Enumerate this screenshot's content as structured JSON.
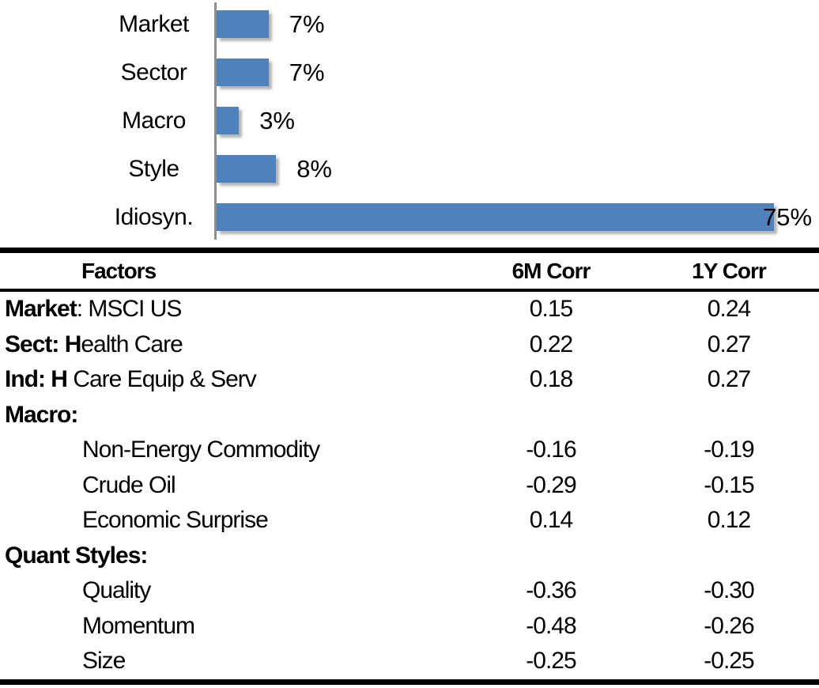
{
  "chart_data": [
    {
      "type": "bar",
      "orientation": "horizontal",
      "title": "",
      "xlabel": "",
      "ylabel": "",
      "categories": [
        "Market",
        "Sector",
        "Macro",
        "Style",
        "Idiosyn."
      ],
      "values": [
        7,
        7,
        3,
        8,
        75
      ],
      "data_labels": [
        "7%",
        "7%",
        "3%",
        "8%",
        "75%"
      ],
      "unit": "%",
      "xlim": [
        0,
        80
      ],
      "grid": false,
      "legend": false,
      "bar_color": "#4F81BD",
      "axis_color": "#8F8F8F"
    },
    {
      "type": "table",
      "columns": [
        "Factors",
        "6M Corr",
        "1Y Corr"
      ],
      "rows": [
        {
          "factor_bold": "Market",
          "factor_rest": ": MSCI US",
          "indent": false,
          "c6m": "0.15",
          "c1y": "0.24"
        },
        {
          "factor_bold": "Sect: H",
          "factor_rest": "ealth Care",
          "indent": false,
          "c6m": "0.22",
          "c1y": "0.27"
        },
        {
          "factor_bold": "Ind: H",
          "factor_rest": " Care Equip & Serv",
          "indent": false,
          "c6m": "0.18",
          "c1y": "0.27"
        },
        {
          "factor_bold": "Macro:",
          "factor_rest": "",
          "indent": false,
          "c6m": "",
          "c1y": ""
        },
        {
          "factor_bold": "",
          "factor_rest": "Non-Energy Commodity",
          "indent": true,
          "c6m": "-0.16",
          "c1y": "-0.19"
        },
        {
          "factor_bold": "",
          "factor_rest": "Crude Oil",
          "indent": true,
          "c6m": "-0.29",
          "c1y": "-0.15"
        },
        {
          "factor_bold": "",
          "factor_rest": "Economic Surprise",
          "indent": true,
          "c6m": "0.14",
          "c1y": "0.12"
        },
        {
          "factor_bold": "Quant Styles:",
          "factor_rest": "",
          "indent": false,
          "c6m": "",
          "c1y": ""
        },
        {
          "factor_bold": "",
          "factor_rest": "Quality",
          "indent": true,
          "c6m": "-0.36",
          "c1y": "-0.30"
        },
        {
          "factor_bold": "",
          "factor_rest": "Momentum",
          "indent": true,
          "c6m": "-0.48",
          "c1y": "-0.26"
        },
        {
          "factor_bold": "",
          "factor_rest": "Size",
          "indent": true,
          "c6m": "-0.25",
          "c1y": "-0.25"
        }
      ]
    }
  ]
}
